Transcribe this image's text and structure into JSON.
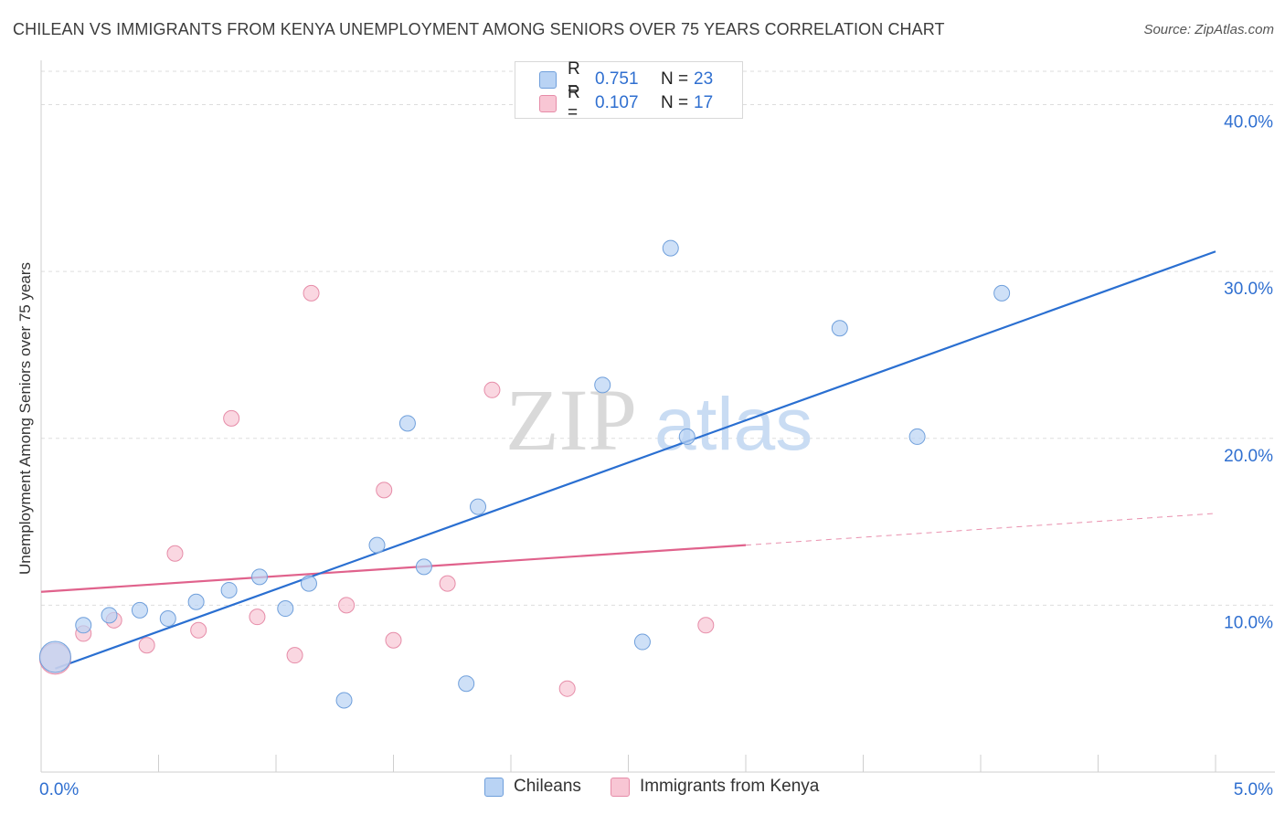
{
  "title": "CHILEAN VS IMMIGRANTS FROM KENYA UNEMPLOYMENT AMONG SENIORS OVER 75 YEARS CORRELATION CHART",
  "source": "Source: ZipAtlas.com",
  "watermark": {
    "zip": "ZIP",
    "atlas": "atlas"
  },
  "legend_top": {
    "rows": [
      {
        "r_label": "R =",
        "r_value": "0.751",
        "n_label": "N =",
        "n_value": "23"
      },
      {
        "r_label": "R =",
        "r_value": "0.107",
        "n_label": "N =",
        "n_value": "17"
      }
    ]
  },
  "legend_bottom": {
    "items": [
      {
        "label": "Chileans"
      },
      {
        "label": "Immigrants from Kenya"
      }
    ]
  },
  "colors": {
    "blue_fill": "#b9d3f4",
    "blue_stroke": "#6f9fdb",
    "blue_line": "#2a6fd1",
    "pink_fill": "#f8c6d4",
    "pink_stroke": "#e68ca8",
    "pink_line": "#e0628c",
    "tick_text": "#2f6fd0",
    "grid": "#dddddd"
  },
  "chart_data": {
    "type": "scatter",
    "title": "CHILEAN VS IMMIGRANTS FROM KENYA UNEMPLOYMENT AMONG SENIORS OVER 75 YEARS CORRELATION CHART",
    "xlabel": "",
    "ylabel": "Unemployment Among Seniors over 75 years",
    "xlim": [
      0,
      5.0
    ],
    "ylim": [
      0,
      42
    ],
    "x_tick_labels": [
      {
        "value": 0,
        "label": "0.0%"
      },
      {
        "value": 5.0,
        "label": "5.0%"
      }
    ],
    "y_tick_labels": [
      {
        "value": 10,
        "label": "10.0%"
      },
      {
        "value": 20,
        "label": "20.0%"
      },
      {
        "value": 30,
        "label": "30.0%"
      },
      {
        "value": 40,
        "label": "40.0%"
      }
    ],
    "series": [
      {
        "name": "Chileans",
        "r": 0.751,
        "n": 23,
        "points": [
          {
            "x": 0.06,
            "y": 6.9,
            "size": "large"
          },
          {
            "x": 0.18,
            "y": 8.8
          },
          {
            "x": 0.29,
            "y": 9.4
          },
          {
            "x": 0.42,
            "y": 9.7
          },
          {
            "x": 0.54,
            "y": 9.2
          },
          {
            "x": 0.66,
            "y": 10.2
          },
          {
            "x": 0.8,
            "y": 10.9
          },
          {
            "x": 0.93,
            "y": 11.7
          },
          {
            "x": 1.04,
            "y": 9.8
          },
          {
            "x": 1.14,
            "y": 11.3
          },
          {
            "x": 1.29,
            "y": 4.3
          },
          {
            "x": 1.43,
            "y": 13.6
          },
          {
            "x": 1.56,
            "y": 20.9
          },
          {
            "x": 1.63,
            "y": 12.3
          },
          {
            "x": 1.81,
            "y": 5.3
          },
          {
            "x": 1.86,
            "y": 15.9
          },
          {
            "x": 2.39,
            "y": 23.2
          },
          {
            "x": 2.56,
            "y": 7.8
          },
          {
            "x": 2.68,
            "y": 31.4
          },
          {
            "x": 2.75,
            "y": 20.1
          },
          {
            "x": 3.4,
            "y": 26.6
          },
          {
            "x": 3.73,
            "y": 20.1
          },
          {
            "x": 4.09,
            "y": 28.7
          }
        ],
        "trend": {
          "x": [
            0.06,
            5.0
          ],
          "y": [
            6.2,
            31.2
          ],
          "style": "solid"
        }
      },
      {
        "name": "Immigrants from Kenya",
        "r": 0.107,
        "n": 17,
        "points": [
          {
            "x": 0.06,
            "y": 6.8,
            "size": "large"
          },
          {
            "x": 0.18,
            "y": 8.3
          },
          {
            "x": 0.31,
            "y": 9.1
          },
          {
            "x": 0.45,
            "y": 7.6
          },
          {
            "x": 0.57,
            "y": 13.1
          },
          {
            "x": 0.67,
            "y": 8.5
          },
          {
            "x": 0.81,
            "y": 21.2
          },
          {
            "x": 0.92,
            "y": 9.3
          },
          {
            "x": 1.08,
            "y": 7.0
          },
          {
            "x": 1.15,
            "y": 28.7
          },
          {
            "x": 1.3,
            "y": 10.0
          },
          {
            "x": 1.46,
            "y": 16.9
          },
          {
            "x": 1.5,
            "y": 7.9
          },
          {
            "x": 1.73,
            "y": 11.3
          },
          {
            "x": 1.92,
            "y": 22.9
          },
          {
            "x": 2.24,
            "y": 5.0
          },
          {
            "x": 2.83,
            "y": 8.8
          }
        ],
        "trend": {
          "x": [
            0.0,
            3.0
          ],
          "y": [
            10.8,
            13.6
          ],
          "style": "solid",
          "extension": {
            "x": [
              3.0,
              5.0
            ],
            "y": [
              13.6,
              15.5
            ],
            "style": "dashed"
          }
        }
      }
    ]
  }
}
